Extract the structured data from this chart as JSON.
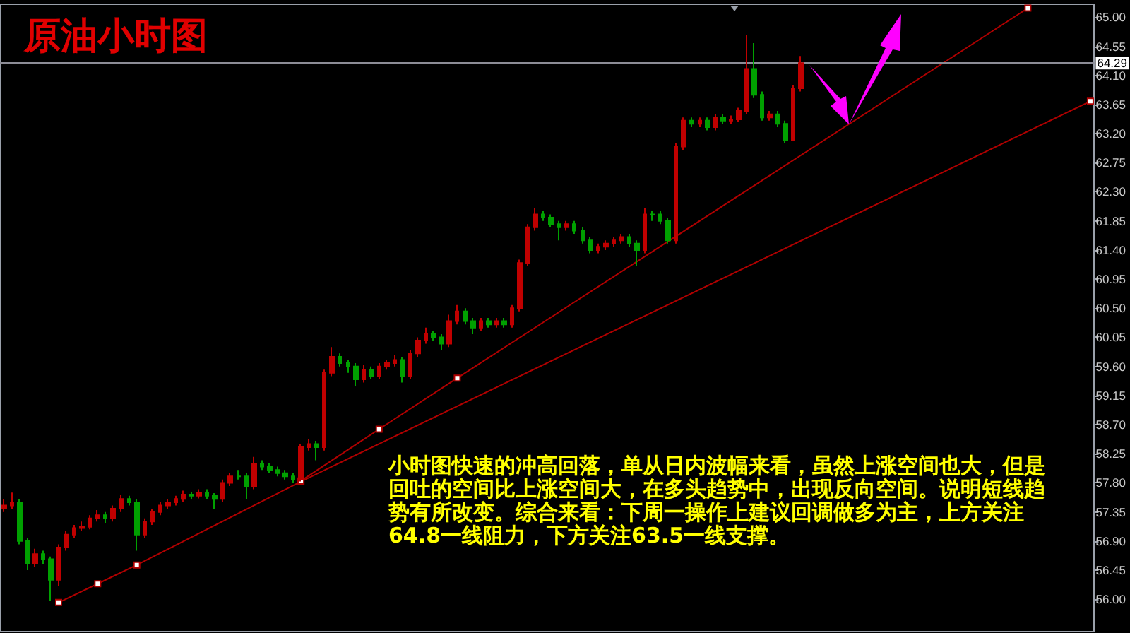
{
  "chart_data": {
    "type": "candlestick",
    "title": "原油小时图",
    "annotations": [
      "小时图快速的冲高回落，单从日内波幅来看，虽然上涨空间也大，但是回吐的空间比上涨空间大，在多头趋势中，出现反向空间。说明短线趋势有所改变。综合来看：下周一操作上建议回调做多为主，上方关注64.8一线阻力，下方关注63.5一线支撑。"
    ],
    "categories": [
      null,
      null,
      null,
      null,
      null,
      null,
      null,
      null,
      null,
      null,
      null,
      null,
      null,
      null,
      null,
      null,
      null,
      null,
      null,
      null,
      null,
      null,
      null,
      null,
      null,
      null,
      null,
      null,
      null,
      null,
      null,
      null,
      null,
      null,
      null,
      null,
      null,
      null,
      null,
      null,
      null,
      null,
      null,
      null,
      null,
      null,
      null,
      null,
      null,
      null,
      null,
      null,
      null,
      null,
      null,
      null,
      null,
      null,
      null,
      null,
      null,
      null,
      null,
      null,
      null,
      null,
      null,
      null,
      null,
      null,
      null,
      null,
      null,
      null,
      null,
      null,
      null,
      null,
      null,
      null,
      null,
      null,
      null,
      null,
      null,
      null,
      null,
      null,
      null,
      null,
      null,
      null,
      null,
      null,
      null,
      null,
      null,
      null,
      null,
      null,
      null,
      null,
      null,
      null,
      null,
      null,
      null,
      null,
      null,
      null,
      null,
      null,
      null,
      null,
      null,
      null,
      null,
      null,
      null,
      null,
      null,
      null,
      null,
      null,
      null,
      null,
      null,
      null,
      null,
      null,
      null,
      null,
      null,
      null,
      null,
      null,
      null,
      null,
      null,
      null
    ],
    "ohlc": [
      [
        57.4,
        57.55,
        57.35,
        57.45
      ],
      [
        57.45,
        57.65,
        57.4,
        57.5
      ],
      [
        57.5,
        57.55,
        56.85,
        56.9
      ],
      [
        56.9,
        56.95,
        56.45,
        56.55
      ],
      [
        56.55,
        56.78,
        56.5,
        56.7
      ],
      [
        56.7,
        56.75,
        56.55,
        56.62
      ],
      [
        56.62,
        56.66,
        55.98,
        56.3
      ],
      [
        56.3,
        56.85,
        56.2,
        56.8
      ],
      [
        56.8,
        57.05,
        56.75,
        57.0
      ],
      [
        57.0,
        57.15,
        56.95,
        57.1
      ],
      [
        57.1,
        57.2,
        57.05,
        57.12
      ],
      [
        57.12,
        57.3,
        57.08,
        57.25
      ],
      [
        57.25,
        57.38,
        57.2,
        57.3
      ],
      [
        57.3,
        57.35,
        57.18,
        57.25
      ],
      [
        57.25,
        57.45,
        57.2,
        57.4
      ],
      [
        57.4,
        57.62,
        57.35,
        57.55
      ],
      [
        57.55,
        57.6,
        57.45,
        57.5
      ],
      [
        57.5,
        57.55,
        56.75,
        57.0
      ],
      [
        57.0,
        57.25,
        56.95,
        57.2
      ],
      [
        57.2,
        57.4,
        57.15,
        57.35
      ],
      [
        57.35,
        57.5,
        57.3,
        57.45
      ],
      [
        57.45,
        57.55,
        57.4,
        57.5
      ],
      [
        57.5,
        57.6,
        57.45,
        57.55
      ],
      [
        57.55,
        57.68,
        57.5,
        57.62
      ],
      [
        57.62,
        57.66,
        57.55,
        57.6
      ],
      [
        57.6,
        57.7,
        57.56,
        57.65
      ],
      [
        57.65,
        57.7,
        57.55,
        57.6
      ],
      [
        57.6,
        57.64,
        57.4,
        57.55
      ],
      [
        57.55,
        57.85,
        57.5,
        57.8
      ],
      [
        57.8,
        57.95,
        57.75,
        57.9
      ],
      [
        57.9,
        58.0,
        57.85,
        57.9
      ],
      [
        57.9,
        57.95,
        57.55,
        57.75
      ],
      [
        57.75,
        58.2,
        57.7,
        58.1
      ],
      [
        58.1,
        58.15,
        58.0,
        58.05
      ],
      [
        58.05,
        58.1,
        57.95,
        58.0
      ],
      [
        58.0,
        58.05,
        57.9,
        57.95
      ],
      [
        57.95,
        58.0,
        57.85,
        57.9
      ],
      [
        57.9,
        57.95,
        57.8,
        57.85
      ],
      [
        57.85,
        58.4,
        57.82,
        58.35
      ],
      [
        58.35,
        58.48,
        58.3,
        58.4
      ],
      [
        58.4,
        58.45,
        58.15,
        58.35
      ],
      [
        58.35,
        59.55,
        58.3,
        59.5
      ],
      [
        59.5,
        59.9,
        59.45,
        59.75
      ],
      [
        59.75,
        59.8,
        59.6,
        59.65
      ],
      [
        59.65,
        59.7,
        59.5,
        59.6
      ],
      [
        59.6,
        59.65,
        59.3,
        59.4
      ],
      [
        59.4,
        59.62,
        59.35,
        59.55
      ],
      [
        59.55,
        59.6,
        59.4,
        59.45
      ],
      [
        59.45,
        59.65,
        59.4,
        59.6
      ],
      [
        59.6,
        59.7,
        59.55,
        59.65
      ],
      [
        59.65,
        59.78,
        59.6,
        59.7
      ],
      [
        59.7,
        59.75,
        59.35,
        59.45
      ],
      [
        59.45,
        59.85,
        59.4,
        59.8
      ],
      [
        59.8,
        60.05,
        59.75,
        60.0
      ],
      [
        60.0,
        60.2,
        59.95,
        60.1
      ],
      [
        60.1,
        60.15,
        60.0,
        60.05
      ],
      [
        60.05,
        60.1,
        59.85,
        59.95
      ],
      [
        59.95,
        60.4,
        59.9,
        60.3
      ],
      [
        60.3,
        60.55,
        60.25,
        60.45
      ],
      [
        60.45,
        60.5,
        60.25,
        60.3
      ],
      [
        60.3,
        60.35,
        60.1,
        60.2
      ],
      [
        60.2,
        60.35,
        60.15,
        60.3
      ],
      [
        60.3,
        60.35,
        60.2,
        60.25
      ],
      [
        60.25,
        60.35,
        60.2,
        60.3
      ],
      [
        60.3,
        60.35,
        60.2,
        60.25
      ],
      [
        60.25,
        60.55,
        60.2,
        60.5
      ],
      [
        60.5,
        61.25,
        60.45,
        61.2
      ],
      [
        61.2,
        61.8,
        61.15,
        61.75
      ],
      [
        61.75,
        62.05,
        61.7,
        61.95
      ],
      [
        61.95,
        62.0,
        61.85,
        61.9
      ],
      [
        61.9,
        61.95,
        61.75,
        61.8
      ],
      [
        61.8,
        61.85,
        61.55,
        61.75
      ],
      [
        61.75,
        61.85,
        61.7,
        61.8
      ],
      [
        61.8,
        61.85,
        61.65,
        61.7
      ],
      [
        61.7,
        61.75,
        61.5,
        61.55
      ],
      [
        61.55,
        61.6,
        61.35,
        61.4
      ],
      [
        61.4,
        61.5,
        61.35,
        61.45
      ],
      [
        61.45,
        61.55,
        61.4,
        61.5
      ],
      [
        61.5,
        61.6,
        61.45,
        61.55
      ],
      [
        61.55,
        61.65,
        61.5,
        61.6
      ],
      [
        61.6,
        61.65,
        61.45,
        61.5
      ],
      [
        61.5,
        61.55,
        61.15,
        61.4
      ],
      [
        61.4,
        62.05,
        61.35,
        61.95
      ],
      [
        61.95,
        62.0,
        61.85,
        61.95
      ],
      [
        61.95,
        62.0,
        61.8,
        61.85
      ],
      [
        61.85,
        61.9,
        61.5,
        61.55
      ],
      [
        61.55,
        63.05,
        61.5,
        63.0
      ],
      [
        63.0,
        63.45,
        62.95,
        63.4
      ],
      [
        63.4,
        63.45,
        63.3,
        63.35
      ],
      [
        63.35,
        63.45,
        63.3,
        63.4
      ],
      [
        63.4,
        63.45,
        63.25,
        63.3
      ],
      [
        63.3,
        63.5,
        63.25,
        63.45
      ],
      [
        63.45,
        63.5,
        63.35,
        63.4
      ],
      [
        63.4,
        63.48,
        63.35,
        63.42
      ],
      [
        63.42,
        63.6,
        63.38,
        63.55
      ],
      [
        63.55,
        64.72,
        63.5,
        64.2
      ],
      [
        64.2,
        64.6,
        63.75,
        63.8
      ],
      [
        63.8,
        63.85,
        63.4,
        63.45
      ],
      [
        63.45,
        63.55,
        63.4,
        63.5
      ],
      [
        63.5,
        63.55,
        63.3,
        63.35
      ],
      [
        63.35,
        63.4,
        63.05,
        63.1
      ],
      [
        63.1,
        63.95,
        63.08,
        63.9
      ],
      [
        63.9,
        64.4,
        63.85,
        64.29
      ],
      null,
      null,
      null,
      null,
      null,
      null,
      null,
      null,
      null,
      null,
      null,
      null,
      null,
      null,
      null,
      null,
      null,
      null,
      null,
      null,
      null,
      null,
      null,
      null,
      null,
      null,
      null,
      null,
      null,
      null,
      null,
      null,
      null,
      null,
      null,
      null,
      null
    ],
    "colors": [
      "#c00000",
      "#c00000",
      "#00a000",
      "#00a000",
      "#c00000",
      "#00a000",
      "#00a000",
      "#c00000",
      "#c00000",
      "#c00000",
      "#c00000",
      "#c00000",
      "#c00000",
      "#00a000",
      "#c00000",
      "#c00000",
      "#00a000",
      "#00a000",
      "#c00000",
      "#c00000",
      "#c00000",
      "#c00000",
      "#c00000",
      "#c00000",
      "#00a000",
      "#c00000",
      "#00a000",
      "#00a000",
      "#c00000",
      "#c00000",
      "#00a000",
      "#00a000",
      "#c00000",
      "#00a000",
      "#00a000",
      "#00a000",
      "#00a000",
      "#00a000",
      "#c00000",
      "#c00000",
      "#00a000",
      "#c00000",
      "#c00000",
      "#00a000",
      "#00a000",
      "#00a000",
      "#c00000",
      "#00a000",
      "#c00000",
      "#c00000",
      "#c00000",
      "#00a000",
      "#c00000",
      "#c00000",
      "#c00000",
      "#00a000",
      "#00a000",
      "#c00000",
      "#c00000",
      "#00a000",
      "#00a000",
      "#c00000",
      "#00a000",
      "#c00000",
      "#00a000",
      "#c00000",
      "#c00000",
      "#c00000",
      "#c00000",
      "#00a000",
      "#00a000",
      "#00a000",
      "#c00000",
      "#00a000",
      "#00a000",
      "#00a000",
      "#c00000",
      "#c00000",
      "#c00000",
      "#c00000",
      "#00a000",
      "#00a000",
      "#c00000",
      "#00a000",
      "#00a000",
      "#00a000",
      "#c00000",
      "#c00000",
      "#00a000",
      "#c00000",
      "#00a000",
      "#c00000",
      "#00a000",
      "#c00000",
      "#c00000",
      "#c00000",
      "#00a000",
      "#00a000",
      "#c00000",
      "#00a000",
      "#00a000",
      "#c00000",
      "#c00000",
      null,
      null,
      null,
      null,
      null,
      null,
      null,
      null,
      null,
      null,
      null,
      null,
      null,
      null,
      null,
      null,
      null,
      null,
      null,
      null,
      null,
      null,
      null,
      null,
      null,
      null,
      null,
      null,
      null,
      null,
      null,
      null,
      null,
      null,
      null,
      null,
      null
    ],
    "series": [
      {
        "type": "line",
        "color": "#b00000",
        "values": [
          null,
          null,
          null,
          null,
          null,
          null,
          null,
          55.95,
          null,
          null,
          null,
          null,
          56.24,
          null,
          null,
          null,
          null,
          56.53,
          null,
          null,
          null,
          null,
          null,
          null,
          null,
          null,
          null,
          null,
          null,
          null,
          null,
          null,
          null,
          null,
          null,
          null,
          null,
          null,
          57.82,
          null,
          null,
          null,
          null,
          null,
          null,
          null,
          null,
          null,
          null,
          null,
          null,
          null,
          null,
          null,
          null,
          null,
          null,
          null,
          null,
          null,
          null,
          null,
          null,
          null,
          null,
          null,
          null,
          null,
          null,
          null,
          null,
          null,
          null,
          null,
          null,
          null,
          null,
          null,
          null,
          null,
          null,
          null,
          null,
          null,
          null,
          null,
          null,
          null,
          null,
          null,
          null,
          null,
          null,
          null,
          null,
          null,
          null,
          null,
          null,
          null,
          null,
          null,
          null,
          null,
          null,
          null,
          null,
          null,
          null,
          null,
          null,
          null,
          null,
          null,
          null,
          null,
          null,
          null,
          null,
          null,
          null,
          null,
          null,
          null,
          null,
          null,
          null,
          null,
          null,
          null,
          null,
          null,
          null,
          null,
          null,
          null,
          null,
          null,
          null,
          63.7
        ]
      },
      {
        "type": "line",
        "color": "#b00000",
        "values": [
          null,
          null,
          null,
          null,
          null,
          null,
          null,
          null,
          null,
          null,
          null,
          null,
          null,
          null,
          null,
          null,
          null,
          null,
          null,
          null,
          null,
          null,
          null,
          null,
          null,
          null,
          null,
          null,
          null,
          null,
          null,
          null,
          null,
          null,
          null,
          null,
          null,
          null,
          57.83,
          null,
          null,
          null,
          null,
          null,
          null,
          null,
          null,
          null,
          58.63,
          null,
          null,
          null,
          null,
          null,
          null,
          null,
          null,
          null,
          59.42,
          null,
          null,
          null,
          null,
          null,
          null,
          null,
          null,
          null,
          null,
          null,
          null,
          null,
          null,
          null,
          null,
          null,
          null,
          null,
          null,
          null,
          null,
          null,
          null,
          null,
          null,
          null,
          null,
          null,
          null,
          null,
          null,
          null,
          null,
          null,
          null,
          null,
          null,
          null,
          null,
          null,
          null,
          null,
          null,
          null,
          null,
          null,
          null,
          null,
          null,
          null,
          null,
          null,
          null,
          null,
          null,
          null,
          null,
          null,
          null,
          null,
          null,
          null,
          null,
          null,
          null,
          null,
          null,
          null,
          null,
          null,
          null,
          65.14,
          null,
          null,
          null,
          null,
          null,
          null,
          null,
          null
        ]
      }
    ],
    "marker": "square",
    "ref_lines": [
      {
        "axis": "y",
        "value": 64.29,
        "label": "64.29",
        "color": "#8c8c96"
      }
    ],
    "ylim": [
      55.5,
      65.2
    ],
    "yticks": [
      {
        "value": 56,
        "label": "56.00"
      },
      {
        "value": 56.45,
        "label": "56.45"
      },
      {
        "value": 56.9,
        "label": "56.90"
      },
      {
        "value": 57.35,
        "label": "57.35"
      },
      {
        "value": 57.8,
        "label": "57.80"
      },
      {
        "value": 58.25,
        "label": "58.25"
      },
      {
        "value": 58.7,
        "label": "58.70"
      },
      {
        "value": 59.15,
        "label": "59.15"
      },
      {
        "value": 59.6,
        "label": "59.60"
      },
      {
        "value": 60.05,
        "label": "60.05"
      },
      {
        "value": 60.5,
        "label": "60.50"
      },
      {
        "value": 60.95,
        "label": "60.95"
      },
      {
        "value": 61.4,
        "label": "61.40"
      },
      {
        "value": 61.85,
        "label": "61.85"
      },
      {
        "value": 62.3,
        "label": "62.30"
      },
      {
        "value": 62.75,
        "label": "62.75"
      },
      {
        "value": 63.2,
        "label": "63.20"
      },
      {
        "value": 63.65,
        "label": "63.65"
      },
      {
        "value": 64.1,
        "label": "64.10"
      },
      {
        "value": 64.55,
        "label": "64.55"
      },
      {
        "value": 65,
        "label": "65.00"
      }
    ],
    "tick_labels": "y",
    "grid": false
  }
}
